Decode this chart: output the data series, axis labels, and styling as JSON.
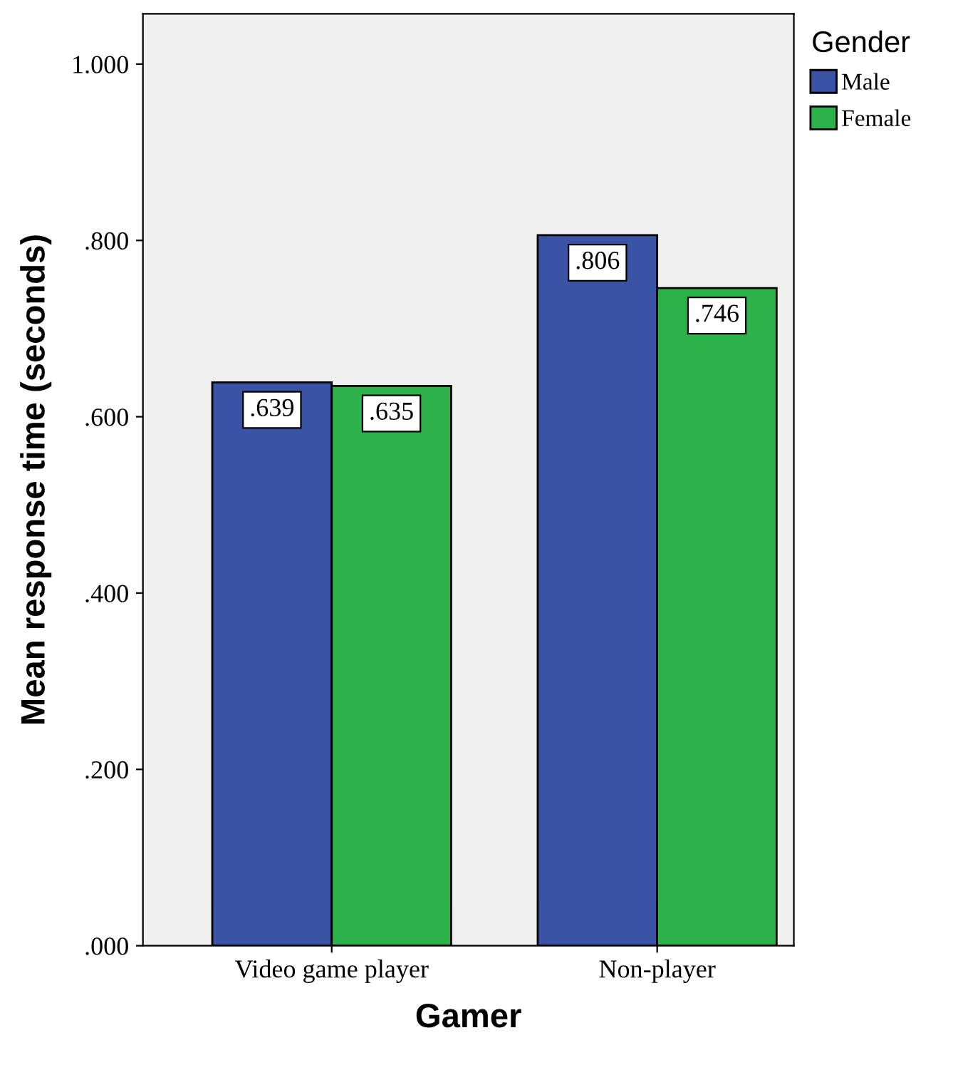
{
  "chart_data": {
    "type": "bar",
    "xlabel": "Gamer",
    "ylabel": "Mean response time (seconds)",
    "legend_title": "Gender",
    "categories": [
      "Video game player",
      "Non-player"
    ],
    "series": [
      {
        "name": "Male",
        "color": "#3a53a4",
        "values": [
          0.639,
          0.806
        ],
        "value_labels": [
          ".639",
          ".806"
        ]
      },
      {
        "name": "Female",
        "color": "#2db14a",
        "values": [
          0.635,
          0.746
        ],
        "value_labels": [
          ".635",
          ".746"
        ]
      }
    ],
    "ylim": [
      0,
      1.057
    ],
    "yticks": [
      {
        "value": 0,
        "label": ".000"
      },
      {
        "value": 0.2,
        "label": ".200"
      },
      {
        "value": 0.4,
        "label": ".400"
      },
      {
        "value": 0.6,
        "label": ".600"
      },
      {
        "value": 0.8,
        "label": ".800"
      },
      {
        "value": 1.0,
        "label": "1.000"
      }
    ],
    "grid": false,
    "legend": "top right"
  }
}
